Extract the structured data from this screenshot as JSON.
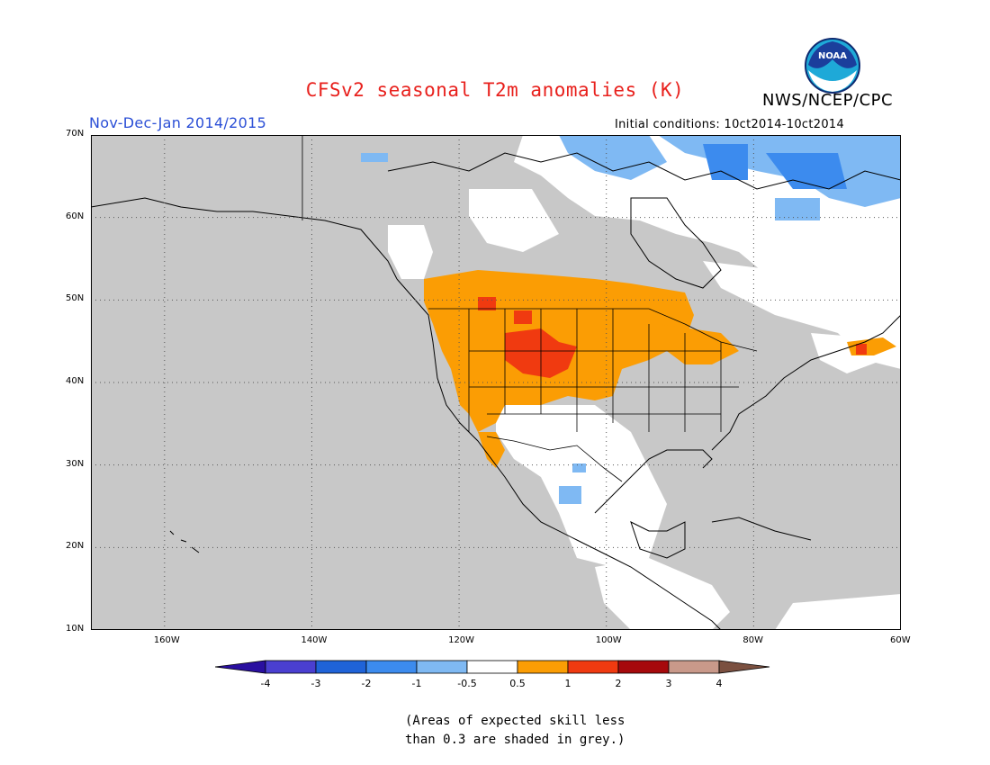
{
  "header": {
    "title": "CFSv2 seasonal T2m anomalies (K)",
    "season": "Nov-Dec-Jan 2014/2015",
    "initial_conditions": "Initial conditions: 10ct2014-10ct2014",
    "agency": "NWS/NCEP/CPC",
    "logo_text": "NOAA"
  },
  "map": {
    "lat_labels": [
      "70N",
      "60N",
      "50N",
      "40N",
      "30N",
      "20N",
      "10N"
    ],
    "lon_labels": [
      "160W",
      "140W",
      "120W",
      "100W",
      "80W",
      "60W"
    ],
    "lon_range": [
      -170,
      -60
    ],
    "lat_range": [
      10,
      70
    ],
    "grid": "dotted every 20° longitude and 10° latitude",
    "background_color": "#c8c8c8",
    "regions": [
      {
        "name": "Northern Rockies / Pacific NW warm",
        "value": 0.75
      },
      {
        "name": "Wyoming-Colorado core",
        "value": 1.5
      },
      {
        "name": "Great Lakes warm",
        "value": 0.75
      },
      {
        "name": "Maritime warm",
        "value": 1.5
      },
      {
        "name": "Canadian Arctic cool",
        "value": -1.0
      },
      {
        "name": "Baffin Island cool",
        "value": -1.5
      },
      {
        "name": "Southwest / Mexico near-normal",
        "value": 0.0
      },
      {
        "name": "Eastern Canada near-normal",
        "value": 0.0
      }
    ]
  },
  "legend": {
    "labels": [
      "-4",
      "-3",
      "-2",
      "-1",
      "-0.5",
      "0.5",
      "1",
      "2",
      "3",
      "4"
    ],
    "colors": [
      "#2a0fa0",
      "#4a3fd0",
      "#1f63d8",
      "#3c8bee",
      "#7fb9f3",
      "#ffffff",
      "#fb9d04",
      "#f03a10",
      "#a6090c",
      "#c9998a",
      "#7b5040"
    ]
  },
  "note": {
    "line1": "(Areas of expected skill less",
    "line2": "than 0.3 are shaded in grey.)"
  }
}
